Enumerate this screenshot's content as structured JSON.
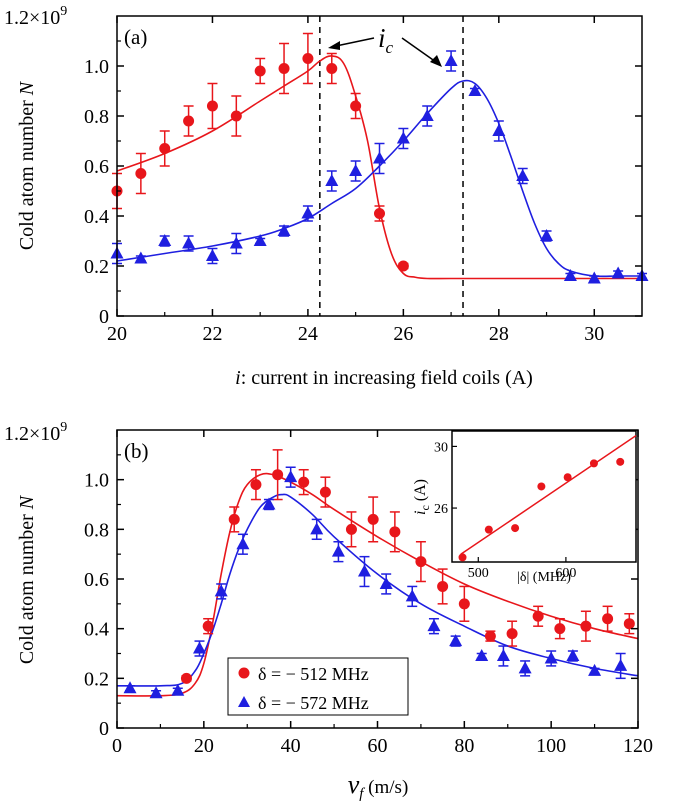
{
  "colors": {
    "red": "#e8161b",
    "blue": "#1f1fe0",
    "black": "#000000"
  },
  "chart_data": [
    {
      "panel": "(a)",
      "type": "scatter",
      "xlabel_italic": "i",
      "xlabel_rest": ": current in increasing field coils (A)",
      "ylabel_main": "Cold atom number ",
      "ylabel_italic": "N",
      "xlim": [
        20,
        31
      ],
      "ylim": [
        0,
        1.2
      ],
      "xticks": [
        "20",
        "22",
        "24",
        "26",
        "28",
        "30"
      ],
      "xtick_values": [
        20,
        22,
        24,
        26,
        28,
        30
      ],
      "yticks": [
        "0",
        "0.2",
        "0.4",
        "0.6",
        "0.8",
        "1.0"
      ],
      "ytick_values": [
        0,
        0.2,
        0.4,
        0.6,
        0.8,
        1.0
      ],
      "ytop_label_base": "1.2×10",
      "ytop_label_exp": "9",
      "annotation_main": "i",
      "annotation_sub": "c",
      "dashed_lines_x": [
        24.25,
        27.25
      ],
      "series": [
        {
          "color": "red",
          "marker": "circle",
          "x": [
            20,
            20.5,
            21,
            21.5,
            22,
            22.5,
            23,
            23.5,
            24,
            24.5,
            25,
            25.5,
            26
          ],
          "y": [
            0.5,
            0.57,
            0.67,
            0.78,
            0.84,
            0.8,
            0.98,
            0.99,
            1.03,
            0.99,
            0.84,
            0.41,
            0.2
          ],
          "err": [
            0.07,
            0.08,
            0.07,
            0.06,
            0.09,
            0.08,
            0.05,
            0.1,
            0.1,
            0.06,
            0.05,
            0.03,
            0.01
          ],
          "fit_x": [
            20,
            21,
            22,
            23,
            23.5,
            24,
            24.25,
            24.5,
            24.75,
            25,
            25.25,
            25.5,
            25.75,
            26,
            26.25,
            26.5,
            27,
            28,
            29,
            30,
            31
          ],
          "fit_y": [
            0.58,
            0.65,
            0.74,
            0.86,
            0.92,
            0.98,
            1.02,
            1.04,
            1.01,
            0.88,
            0.7,
            0.43,
            0.25,
            0.17,
            0.155,
            0.15,
            0.15,
            0.15,
            0.15,
            0.15,
            0.15
          ]
        },
        {
          "color": "blue",
          "marker": "triangle",
          "x": [
            20,
            20.5,
            21,
            21.5,
            22,
            22.5,
            23,
            23.5,
            24,
            24.5,
            25,
            25.5,
            26,
            26.5,
            27,
            27.5,
            28,
            28.5,
            29,
            29.5,
            30,
            30.5,
            31
          ],
          "y": [
            0.25,
            0.23,
            0.3,
            0.29,
            0.24,
            0.29,
            0.3,
            0.34,
            0.41,
            0.54,
            0.58,
            0.63,
            0.71,
            0.8,
            1.02,
            0.9,
            0.74,
            0.56,
            0.32,
            0.16,
            0.15,
            0.17,
            0.16
          ],
          "err": [
            0.04,
            0.01,
            0.02,
            0.03,
            0.03,
            0.04,
            0.01,
            0.02,
            0.03,
            0.04,
            0.04,
            0.06,
            0.04,
            0.04,
            0.04,
            0.01,
            0.04,
            0.03,
            0.02,
            0.01,
            0.01,
            0.01,
            0.01
          ],
          "fit_x": [
            20,
            21,
            22,
            23,
            23.5,
            24,
            24.5,
            25,
            25.5,
            26,
            26.5,
            27,
            27.25,
            27.5,
            27.75,
            28,
            28.25,
            28.5,
            28.75,
            29,
            29.25,
            29.5,
            30,
            30.5,
            31
          ],
          "fit_y": [
            0.22,
            0.25,
            0.28,
            0.32,
            0.35,
            0.39,
            0.45,
            0.51,
            0.6,
            0.7,
            0.81,
            0.91,
            0.94,
            0.93,
            0.87,
            0.77,
            0.64,
            0.5,
            0.37,
            0.27,
            0.21,
            0.18,
            0.16,
            0.16,
            0.16
          ]
        }
      ]
    },
    {
      "panel": "(b)",
      "type": "scatter",
      "xlabel_main": "v",
      "xlabel_sub": "f",
      "xlabel_rest": " (m/s)",
      "ylabel_main": "Cold atom number ",
      "ylabel_italic": "N",
      "xlim": [
        0,
        120
      ],
      "ylim": [
        0,
        1.2
      ],
      "xticks": [
        "0",
        "20",
        "40",
        "60",
        "80",
        "100",
        "120"
      ],
      "xtick_values": [
        0,
        20,
        40,
        60,
        80,
        100,
        120
      ],
      "yticks": [
        "0",
        "0.2",
        "0.4",
        "0.6",
        "0.8",
        "1.0"
      ],
      "ytick_values": [
        0,
        0.2,
        0.4,
        0.6,
        0.8,
        1.0
      ],
      "ytop_label_base": "1.2×10",
      "ytop_label_exp": "9",
      "legend_position": "bottom-left",
      "legend": [
        "δ = − 512 MHz",
        "δ = − 572 MHz"
      ],
      "series": [
        {
          "color": "red",
          "marker": "circle",
          "x": [
            16,
            21,
            27,
            32,
            37,
            43,
            48,
            54,
            59,
            64,
            70,
            75,
            80,
            86,
            91,
            97,
            102,
            108,
            113,
            118
          ],
          "y": [
            0.2,
            0.41,
            0.84,
            0.98,
            1.02,
            0.99,
            0.95,
            0.8,
            0.84,
            0.79,
            0.67,
            0.57,
            0.5,
            0.37,
            0.38,
            0.45,
            0.4,
            0.41,
            0.44,
            0.42
          ],
          "err": [
            0.01,
            0.03,
            0.05,
            0.06,
            0.1,
            0.05,
            0.06,
            0.07,
            0.09,
            0.08,
            0.08,
            0.07,
            0.07,
            0.02,
            0.05,
            0.04,
            0.04,
            0.06,
            0.05,
            0.04
          ],
          "fit_x": [
            0,
            10,
            15,
            18,
            20,
            22,
            24,
            26,
            28,
            30,
            33,
            36,
            40,
            45,
            50,
            60,
            70,
            80,
            90,
            100,
            110,
            120
          ],
          "fit_y": [
            0.13,
            0.13,
            0.14,
            0.18,
            0.26,
            0.42,
            0.62,
            0.79,
            0.91,
            0.98,
            1.02,
            1.02,
            0.99,
            0.94,
            0.88,
            0.77,
            0.67,
            0.58,
            0.51,
            0.45,
            0.4,
            0.36
          ]
        },
        {
          "color": "blue",
          "marker": "triangle",
          "x": [
            3,
            9,
            14,
            19,
            24,
            29,
            35,
            40,
            46,
            51,
            57,
            62,
            68,
            73,
            78,
            84,
            89,
            94,
            100,
            105,
            110,
            116
          ],
          "y": [
            0.16,
            0.14,
            0.15,
            0.32,
            0.55,
            0.74,
            0.9,
            1.01,
            0.8,
            0.71,
            0.63,
            0.58,
            0.53,
            0.41,
            0.35,
            0.29,
            0.29,
            0.24,
            0.28,
            0.29,
            0.23,
            0.25
          ],
          "err": [
            0.01,
            0.01,
            0.01,
            0.03,
            0.03,
            0.04,
            0.02,
            0.04,
            0.04,
            0.04,
            0.06,
            0.04,
            0.04,
            0.03,
            0.02,
            0.01,
            0.04,
            0.03,
            0.03,
            0.02,
            0.01,
            0.05
          ],
          "fit_x": [
            0,
            10,
            15,
            18,
            20,
            22,
            24,
            26,
            28,
            30,
            33,
            36,
            38,
            40,
            45,
            50,
            60,
            70,
            80,
            90,
            100,
            110,
            120
          ],
          "fit_y": [
            0.17,
            0.17,
            0.18,
            0.23,
            0.3,
            0.39,
            0.5,
            0.62,
            0.72,
            0.8,
            0.89,
            0.93,
            0.94,
            0.93,
            0.86,
            0.77,
            0.62,
            0.5,
            0.41,
            0.33,
            0.28,
            0.24,
            0.21
          ]
        }
      ],
      "inset": {
        "type": "scatter",
        "xlabel": "|δ| (MHz)",
        "ylabel_main": "i",
        "ylabel_sub": "c",
        "ylabel_rest": " (A)",
        "xlim": [
          470,
          680
        ],
        "ylim": [
          22.5,
          31
        ],
        "xticks": [
          "500",
          "600"
        ],
        "xtick_values": [
          500,
          600
        ],
        "yticks": [
          "26",
          "30"
        ],
        "ytick_values": [
          26,
          30
        ],
        "x": [
          482,
          512,
          542,
          572,
          602,
          632,
          662
        ],
        "y": [
          22.8,
          24.6,
          24.7,
          27.4,
          28.0,
          28.9,
          29.0
        ],
        "fit_x": [
          480,
          680
        ],
        "fit_y": [
          23.0,
          30.7
        ]
      }
    }
  ]
}
